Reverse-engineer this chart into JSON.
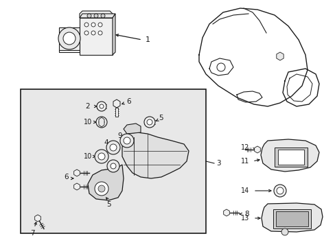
{
  "bg_color": "#ffffff",
  "line_color": "#1a1a1a",
  "gray_fill": "#e8e8e8",
  "box_fill": "#ebebeb",
  "figsize": [
    4.89,
    3.6
  ],
  "dpi": 100,
  "xlim": [
    0,
    489
  ],
  "ylim": [
    0,
    360
  ]
}
